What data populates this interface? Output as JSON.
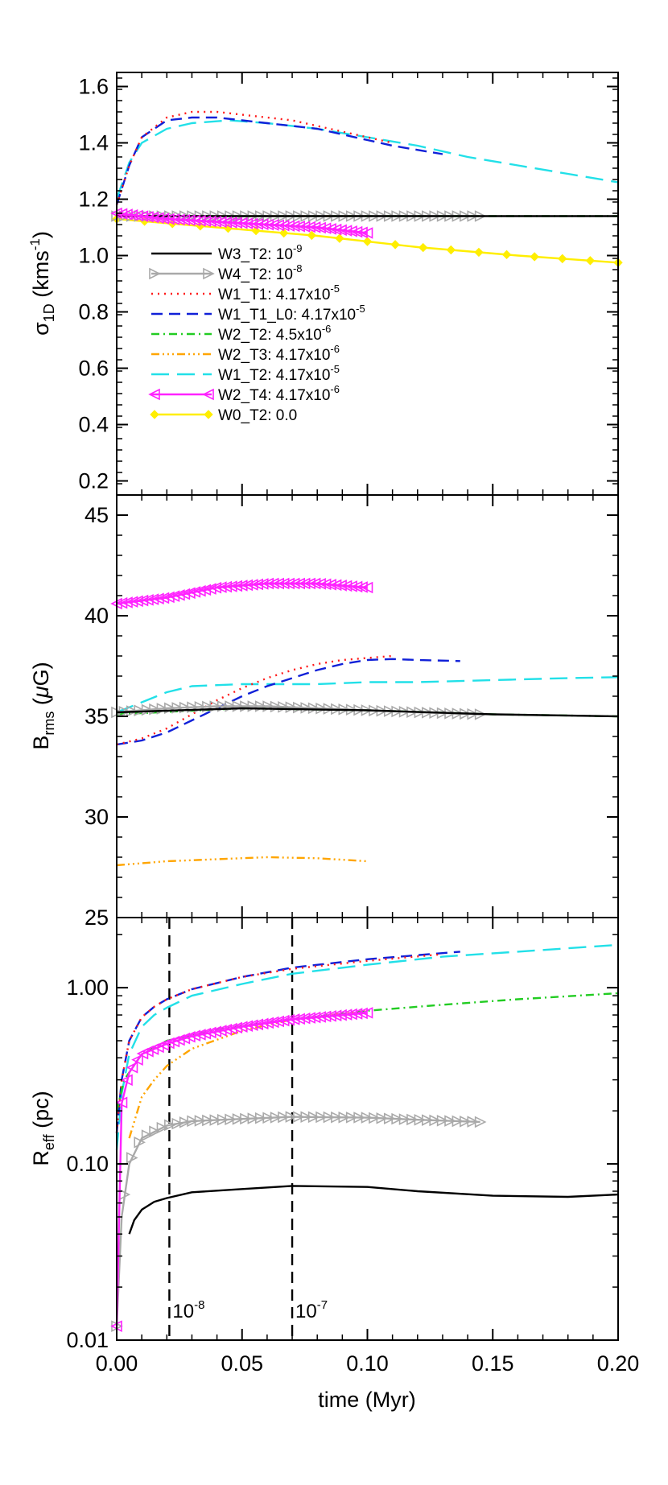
{
  "chart_data": [
    {
      "type": "line",
      "panel": "top",
      "ylabel_html": {
        "base": "σ",
        "sub": "1D",
        "unit_open": " (kms",
        "unit_sup": "-1",
        "unit_close": ")"
      },
      "ylim": [
        0.15,
        1.65
      ],
      "yticks": [
        0.2,
        0.4,
        0.6,
        0.8,
        1.0,
        1.2,
        1.4,
        1.6
      ],
      "ytick_labels": [
        "0.2",
        "0.4",
        "0.6",
        "0.8",
        "1.0",
        "1.2",
        "1.4",
        "1.6"
      ],
      "xlim": [
        0.0,
        0.2
      ],
      "legend_position": "lower-left",
      "series": [
        {
          "key": "W3_T2",
          "x": [
            0.0,
            0.05,
            0.1,
            0.15,
            0.2
          ],
          "y": [
            1.14,
            1.14,
            1.14,
            1.14,
            1.14
          ]
        },
        {
          "key": "W4_T2",
          "x": [
            0.0,
            0.02,
            0.04,
            0.06,
            0.08,
            0.1,
            0.12,
            0.145
          ],
          "y": [
            1.14,
            1.14,
            1.14,
            1.14,
            1.14,
            1.14,
            1.14,
            1.14
          ]
        },
        {
          "key": "W1_T1",
          "x": [
            0.0,
            0.005,
            0.01,
            0.02,
            0.03,
            0.04,
            0.05,
            0.06,
            0.07,
            0.08,
            0.09,
            0.1,
            0.11
          ],
          "y": [
            1.18,
            1.32,
            1.42,
            1.49,
            1.51,
            1.51,
            1.5,
            1.49,
            1.48,
            1.46,
            1.44,
            1.42,
            1.4
          ]
        },
        {
          "key": "W1_T1_L0",
          "x": [
            0.0,
            0.005,
            0.01,
            0.02,
            0.03,
            0.04,
            0.05,
            0.06,
            0.07,
            0.08,
            0.09,
            0.1,
            0.11,
            0.13
          ],
          "y": [
            1.18,
            1.32,
            1.42,
            1.48,
            1.49,
            1.49,
            1.48,
            1.47,
            1.46,
            1.45,
            1.43,
            1.41,
            1.39,
            1.36
          ]
        },
        {
          "key": "W2_T2",
          "x": [
            0.0,
            0.05,
            0.1,
            0.15,
            0.2
          ],
          "y": [
            1.14,
            1.14,
            1.14,
            1.14,
            1.14
          ]
        },
        {
          "key": "W2_T3",
          "x": [
            0.0,
            0.05,
            0.1
          ],
          "y": [
            1.14,
            1.14,
            1.14
          ]
        },
        {
          "key": "W1_T2",
          "x": [
            0.0,
            0.005,
            0.01,
            0.02,
            0.03,
            0.045,
            0.06,
            0.08,
            0.1,
            0.12,
            0.14,
            0.16,
            0.18,
            0.2
          ],
          "y": [
            1.2,
            1.33,
            1.4,
            1.45,
            1.47,
            1.48,
            1.47,
            1.45,
            1.42,
            1.39,
            1.35,
            1.32,
            1.29,
            1.26
          ]
        },
        {
          "key": "W2_T4",
          "x": [
            0.0,
            0.02,
            0.04,
            0.06,
            0.08,
            0.1
          ],
          "y": [
            1.15,
            1.13,
            1.12,
            1.11,
            1.1,
            1.08
          ]
        },
        {
          "key": "W0_T2",
          "x": [
            0.0,
            0.04,
            0.08,
            0.12,
            0.16,
            0.2
          ],
          "y": [
            1.13,
            1.1,
            1.07,
            1.03,
            1.0,
            0.975
          ]
        }
      ]
    },
    {
      "type": "line",
      "panel": "middle",
      "ylabel_html": {
        "base": "B",
        "sub": "rms",
        "unit_open": " (",
        "unit_mu": "μ",
        "unit_close": "G)"
      },
      "ylim": [
        25,
        46
      ],
      "yticks": [
        25,
        30,
        35,
        40,
        45
      ],
      "ytick_labels": [
        "25",
        "30",
        "35",
        "40",
        "45"
      ],
      "xlim": [
        0.0,
        0.2
      ],
      "series": [
        {
          "key": "W3_T2",
          "x": [
            0.0,
            0.05,
            0.1,
            0.15,
            0.2
          ],
          "y": [
            35.2,
            35.4,
            35.3,
            35.1,
            35.0
          ]
        },
        {
          "key": "W4_T2",
          "x": [
            0.0,
            0.02,
            0.04,
            0.06,
            0.08,
            0.1,
            0.12,
            0.145
          ],
          "y": [
            35.2,
            35.4,
            35.5,
            35.5,
            35.4,
            35.3,
            35.2,
            35.1
          ]
        },
        {
          "key": "W1_T1",
          "x": [
            0.0,
            0.01,
            0.02,
            0.03,
            0.04,
            0.05,
            0.06,
            0.07,
            0.08,
            0.09,
            0.1,
            0.11
          ],
          "y": [
            33.6,
            33.9,
            34.4,
            35.1,
            35.8,
            36.4,
            36.9,
            37.3,
            37.6,
            37.8,
            37.9,
            38.0
          ]
        },
        {
          "key": "W1_T1_L0",
          "x": [
            0.0,
            0.01,
            0.02,
            0.03,
            0.04,
            0.05,
            0.06,
            0.07,
            0.08,
            0.09,
            0.1,
            0.11,
            0.12,
            0.137
          ],
          "y": [
            33.6,
            33.8,
            34.2,
            34.8,
            35.4,
            36.0,
            36.5,
            36.9,
            37.3,
            37.6,
            37.8,
            37.85,
            37.8,
            37.75
          ]
        },
        {
          "key": "W2_T2",
          "x": [
            0.0,
            0.05,
            0.1,
            0.15,
            0.2
          ],
          "y": [
            35.1,
            35.4,
            35.3,
            35.1,
            35.0
          ]
        },
        {
          "key": "W2_T3",
          "x": [
            0.0,
            0.02,
            0.04,
            0.06,
            0.08,
            0.1
          ],
          "y": [
            27.6,
            27.8,
            27.9,
            28.0,
            27.95,
            27.8
          ]
        },
        {
          "key": "W1_T2",
          "x": [
            0.0,
            0.01,
            0.02,
            0.03,
            0.05,
            0.08,
            0.1,
            0.12,
            0.15,
            0.18,
            0.2
          ],
          "y": [
            35.2,
            35.7,
            36.2,
            36.5,
            36.6,
            36.6,
            36.7,
            36.7,
            36.8,
            36.9,
            36.95
          ]
        },
        {
          "key": "W2_T4",
          "x": [
            0.0,
            0.02,
            0.04,
            0.06,
            0.08,
            0.1
          ],
          "y": [
            40.6,
            40.9,
            41.4,
            41.6,
            41.6,
            41.4
          ]
        },
        {
          "key": "W0_T2",
          "x": [],
          "y": []
        }
      ]
    },
    {
      "type": "line",
      "panel": "bottom",
      "yscale": "log",
      "ylabel_html": {
        "base": "R",
        "sub": "eff",
        "unit_open": " (pc)"
      },
      "ylim": [
        0.01,
        2.5
      ],
      "yticks": [
        0.01,
        0.1,
        1.0
      ],
      "ytick_labels": [
        "0.01",
        "0.10",
        "1.00"
      ],
      "xlim": [
        0.0,
        0.2
      ],
      "xlabel": "time (Myr)",
      "xticks": [
        0.0,
        0.05,
        0.1,
        0.15,
        0.2
      ],
      "xtick_labels": [
        "0.00",
        "0.05",
        "0.10",
        "0.15",
        "0.20"
      ],
      "vlines": [
        {
          "x": 0.021,
          "label_base": "10",
          "label_sup": "-8"
        },
        {
          "x": 0.07,
          "label_base": "10",
          "label_sup": "-7"
        }
      ],
      "series": [
        {
          "key": "W3_T2",
          "x": [
            0.005,
            0.007,
            0.01,
            0.015,
            0.02,
            0.03,
            0.05,
            0.07,
            0.1,
            0.12,
            0.15,
            0.18,
            0.2
          ],
          "y": [
            0.04,
            0.048,
            0.055,
            0.061,
            0.064,
            0.069,
            0.072,
            0.075,
            0.074,
            0.07,
            0.066,
            0.065,
            0.067
          ]
        },
        {
          "key": "W4_T2",
          "x": [
            0.0,
            0.002,
            0.005,
            0.01,
            0.02,
            0.03,
            0.05,
            0.07,
            0.1,
            0.12,
            0.145
          ],
          "y": [
            0.012,
            0.05,
            0.1,
            0.14,
            0.165,
            0.175,
            0.18,
            0.185,
            0.183,
            0.178,
            0.173
          ]
        },
        {
          "key": "W1_T1",
          "x": [
            0.0,
            0.002,
            0.005,
            0.01,
            0.015,
            0.02,
            0.03,
            0.05,
            0.07,
            0.1,
            0.13
          ],
          "y": [
            0.15,
            0.3,
            0.5,
            0.68,
            0.78,
            0.86,
            0.98,
            1.15,
            1.28,
            1.42,
            1.55
          ]
        },
        {
          "key": "W1_T1_L0",
          "x": [
            0.0,
            0.002,
            0.005,
            0.01,
            0.015,
            0.02,
            0.03,
            0.05,
            0.07,
            0.1,
            0.137
          ],
          "y": [
            0.15,
            0.3,
            0.5,
            0.68,
            0.78,
            0.86,
            0.98,
            1.15,
            1.3,
            1.45,
            1.6
          ]
        },
        {
          "key": "W2_T2",
          "x": [
            0.0,
            0.003,
            0.01,
            0.02,
            0.04,
            0.07,
            0.1,
            0.13,
            0.16,
            0.2
          ],
          "y": [
            0.2,
            0.3,
            0.42,
            0.5,
            0.58,
            0.66,
            0.74,
            0.8,
            0.86,
            0.93
          ]
        },
        {
          "key": "W2_T3",
          "x": [
            0.005,
            0.01,
            0.015,
            0.02,
            0.03,
            0.05,
            0.07,
            0.1
          ],
          "y": [
            0.14,
            0.24,
            0.3,
            0.36,
            0.45,
            0.57,
            0.66,
            0.74
          ]
        },
        {
          "key": "W1_T2",
          "x": [
            0.0,
            0.002,
            0.005,
            0.01,
            0.015,
            0.02,
            0.03,
            0.05,
            0.07,
            0.1,
            0.13,
            0.16,
            0.2
          ],
          "y": [
            0.12,
            0.25,
            0.42,
            0.6,
            0.7,
            0.77,
            0.9,
            1.05,
            1.2,
            1.35,
            1.5,
            1.6,
            1.75
          ]
        },
        {
          "key": "W2_T4",
          "x": [
            0.0,
            0.002,
            0.005,
            0.01,
            0.02,
            0.03,
            0.05,
            0.07,
            0.1
          ],
          "y": [
            0.012,
            0.22,
            0.33,
            0.42,
            0.48,
            0.53,
            0.6,
            0.66,
            0.72
          ]
        },
        {
          "key": "W0_T2",
          "x": [],
          "y": []
        }
      ]
    }
  ],
  "legend": [
    {
      "key": "W3_T2",
      "name": "W3_T2: ",
      "base": "10",
      "sup": "-9",
      "color": "#000000",
      "dash": "",
      "marker": "none"
    },
    {
      "key": "W4_T2",
      "name": "W4_T2: ",
      "base": "10",
      "sup": "-8",
      "color": "#a9a9a9",
      "dash": "",
      "marker": "tri-right-open"
    },
    {
      "key": "W1_T1",
      "name": "W1_T1: ",
      "base": "4.17x10",
      "sup": "-5",
      "color": "#ff1a1a",
      "dash": "2,6",
      "marker": "none"
    },
    {
      "key": "W1_T1_L0",
      "name": "W1_T1_L0: ",
      "base": "4.17x10",
      "sup": "-5",
      "color": "#1020d8",
      "dash": "14,8",
      "marker": "none"
    },
    {
      "key": "W2_T2",
      "name": "W2_T2: ",
      "base": "4.5x10",
      "sup": "-6",
      "color": "#22cc22",
      "dash": "10,5,2,5",
      "marker": "none"
    },
    {
      "key": "W2_T3",
      "name": "W2_T3: ",
      "base": "4.17x10",
      "sup": "-6",
      "color": "#ffa500",
      "dash": "10,4,2,4,2,4,2,4",
      "marker": "none"
    },
    {
      "key": "W1_T2",
      "name": "W1_T2: ",
      "base": "4.17x10",
      "sup": "-5",
      "color": "#22e0e8",
      "dash": "22,10",
      "marker": "none"
    },
    {
      "key": "W2_T4",
      "name": "W2_T4: ",
      "base": "4.17x10",
      "sup": "-6",
      "color": "#ff22ff",
      "dash": "",
      "marker": "tri-left-open"
    },
    {
      "key": "W0_T2",
      "name": "W0_T2: ",
      "base": "0.0",
      "sup": "",
      "color": "#ffee00",
      "dash": "",
      "marker": "diamond"
    }
  ]
}
